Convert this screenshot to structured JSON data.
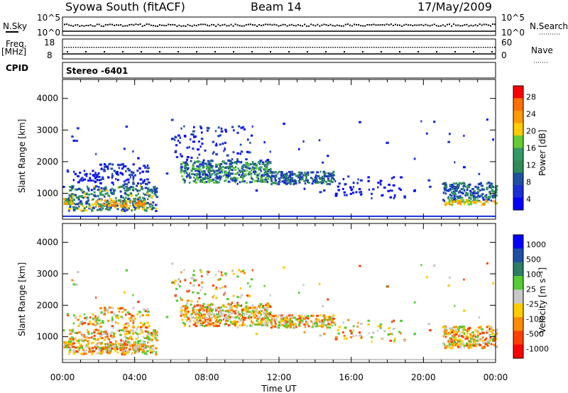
{
  "header": {
    "title": "Syowa South (fitACF)",
    "beam": "Beam 14",
    "date": "17/May/2009"
  },
  "left_labels": {
    "nsky": "N.Sky",
    "freq_line1": "Freq.",
    "freq_line2": "[MHz]",
    "cpid": "CPID"
  },
  "right_labels": {
    "nsearch": "N.Search",
    "nave": "Nave"
  },
  "cpid_text": "Stereo -6401",
  "chart_data": [
    {
      "name": "noise",
      "type": "line",
      "left_ticks": [
        "10^5",
        "10^0"
      ],
      "right_ticks": [
        "10^5",
        "10^0"
      ]
    },
    {
      "name": "frequency",
      "type": "scatter",
      "left_ticks": [
        "18",
        "8"
      ],
      "right_ticks": [
        "60",
        "0"
      ]
    },
    {
      "name": "power",
      "type": "heatmap",
      "ylabel": "Slant Range [km]",
      "yticks": [
        1000,
        2000,
        3000,
        4000
      ],
      "ylim": [
        180,
        4600
      ],
      "xlim": [
        0,
        24
      ],
      "colorbar_label": "Power [dB]",
      "colorbar_ticks": [
        "28",
        "24",
        "20",
        "16",
        "12",
        "8",
        "4"
      ],
      "colorbar_colors": [
        "#ff0000",
        "#ff7000",
        "#ff9a00",
        "#ffcd00",
        "#66cc33",
        "#339966",
        "#2e8b57",
        "#1e4fa0",
        "#1a2fd6",
        "#0000ff"
      ]
    },
    {
      "name": "velocity",
      "type": "heatmap",
      "ylabel": "Slant Range [km]",
      "yticks": [
        1000,
        2000,
        3000,
        4000
      ],
      "ylim": [
        180,
        4600
      ],
      "xlim": [
        0,
        24
      ],
      "xlabel": "Time UT",
      "xticks": [
        "00:00",
        "04:00",
        "08:00",
        "12:00",
        "16:00",
        "20:00",
        "00:00"
      ],
      "colorbar_label": "Velocity [m s⁻¹]",
      "colorbar_ticks": [
        "1000",
        "500",
        "100",
        "25",
        "-25",
        "-100",
        "-500",
        "-1000"
      ],
      "colorbar_colors": [
        "#0000ff",
        "#1f4fa5",
        "#2e7d66",
        "#55cc33",
        "#c8c8c8",
        "#ffcc00",
        "#ff8c00",
        "#ff4000",
        "#ff0000"
      ]
    }
  ]
}
